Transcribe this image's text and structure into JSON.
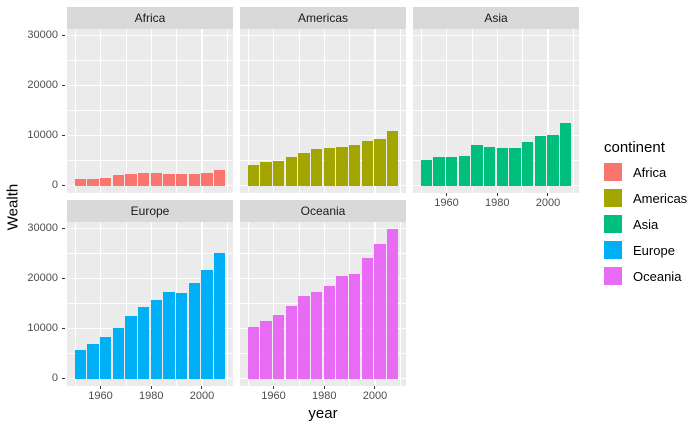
{
  "chart_data": {
    "type": "bar",
    "title": "",
    "xlabel": "year",
    "ylabel": "Wealth",
    "facet_by": "continent",
    "x": [
      1952,
      1957,
      1962,
      1967,
      1972,
      1977,
      1982,
      1987,
      1992,
      1997,
      2002,
      2007
    ],
    "bar_width": 4.5,
    "x_domain": [
      1946.775,
      2012.225
    ],
    "y_domain": [
      -1490.5,
      31300.5
    ],
    "x_ticks": [
      1960,
      1980,
      2000
    ],
    "x_minor_ticks": [
      1950,
      1970,
      1990,
      2010
    ],
    "y_ticks": [
      0,
      10000,
      20000,
      30000
    ],
    "y_minor_ticks": [
      5000,
      15000,
      25000
    ],
    "grid": true,
    "legend": {
      "title": "continent",
      "position": "right",
      "items": [
        {
          "label": "Africa",
          "color": "#F8766D"
        },
        {
          "label": "Americas",
          "color": "#A3A500"
        },
        {
          "label": "Asia",
          "color": "#00BF7D"
        },
        {
          "label": "Europe",
          "color": "#00B0F6"
        },
        {
          "label": "Oceania",
          "color": "#E76BF3"
        }
      ]
    },
    "facets": [
      {
        "name": "Africa",
        "color": "#F8766D",
        "values": [
          1253,
          1385,
          1598,
          2050,
          2340,
          2586,
          2482,
          2283,
          2282,
          2379,
          2599,
          3089
        ]
      },
      {
        "name": "Americas",
        "color": "#A3A500",
        "values": [
          4079,
          4616,
          4902,
          5668,
          6491,
          7352,
          7507,
          7793,
          8045,
          8889,
          9287,
          11003
        ]
      },
      {
        "name": "Asia",
        "color": "#00BF7D",
        "values": [
          5195,
          5788,
          5729,
          5971,
          8187,
          7791,
          7434,
          7608,
          8640,
          9834,
          10174,
          12473
        ]
      },
      {
        "name": "Europe",
        "color": "#00B0F6",
        "values": [
          5661,
          6963,
          8365,
          10143,
          12479,
          14283,
          15617,
          17214,
          17061,
          19076,
          21711,
          25054
        ]
      },
      {
        "name": "Oceania",
        "color": "#E76BF3",
        "values": [
          10298,
          11599,
          12696,
          14495,
          16418,
          17283,
          18554,
          20448,
          20894,
          24024,
          26939,
          29810
        ]
      }
    ],
    "style": {
      "background": "#FFFFFF",
      "panel_bg": "#EBEBEB",
      "strip_bg": "#D9D9D9",
      "grid_color": "#FFFFFF",
      "tick_color": "#333333",
      "axis_text_color": "#4D4D4D",
      "title_color": "#000000"
    }
  }
}
